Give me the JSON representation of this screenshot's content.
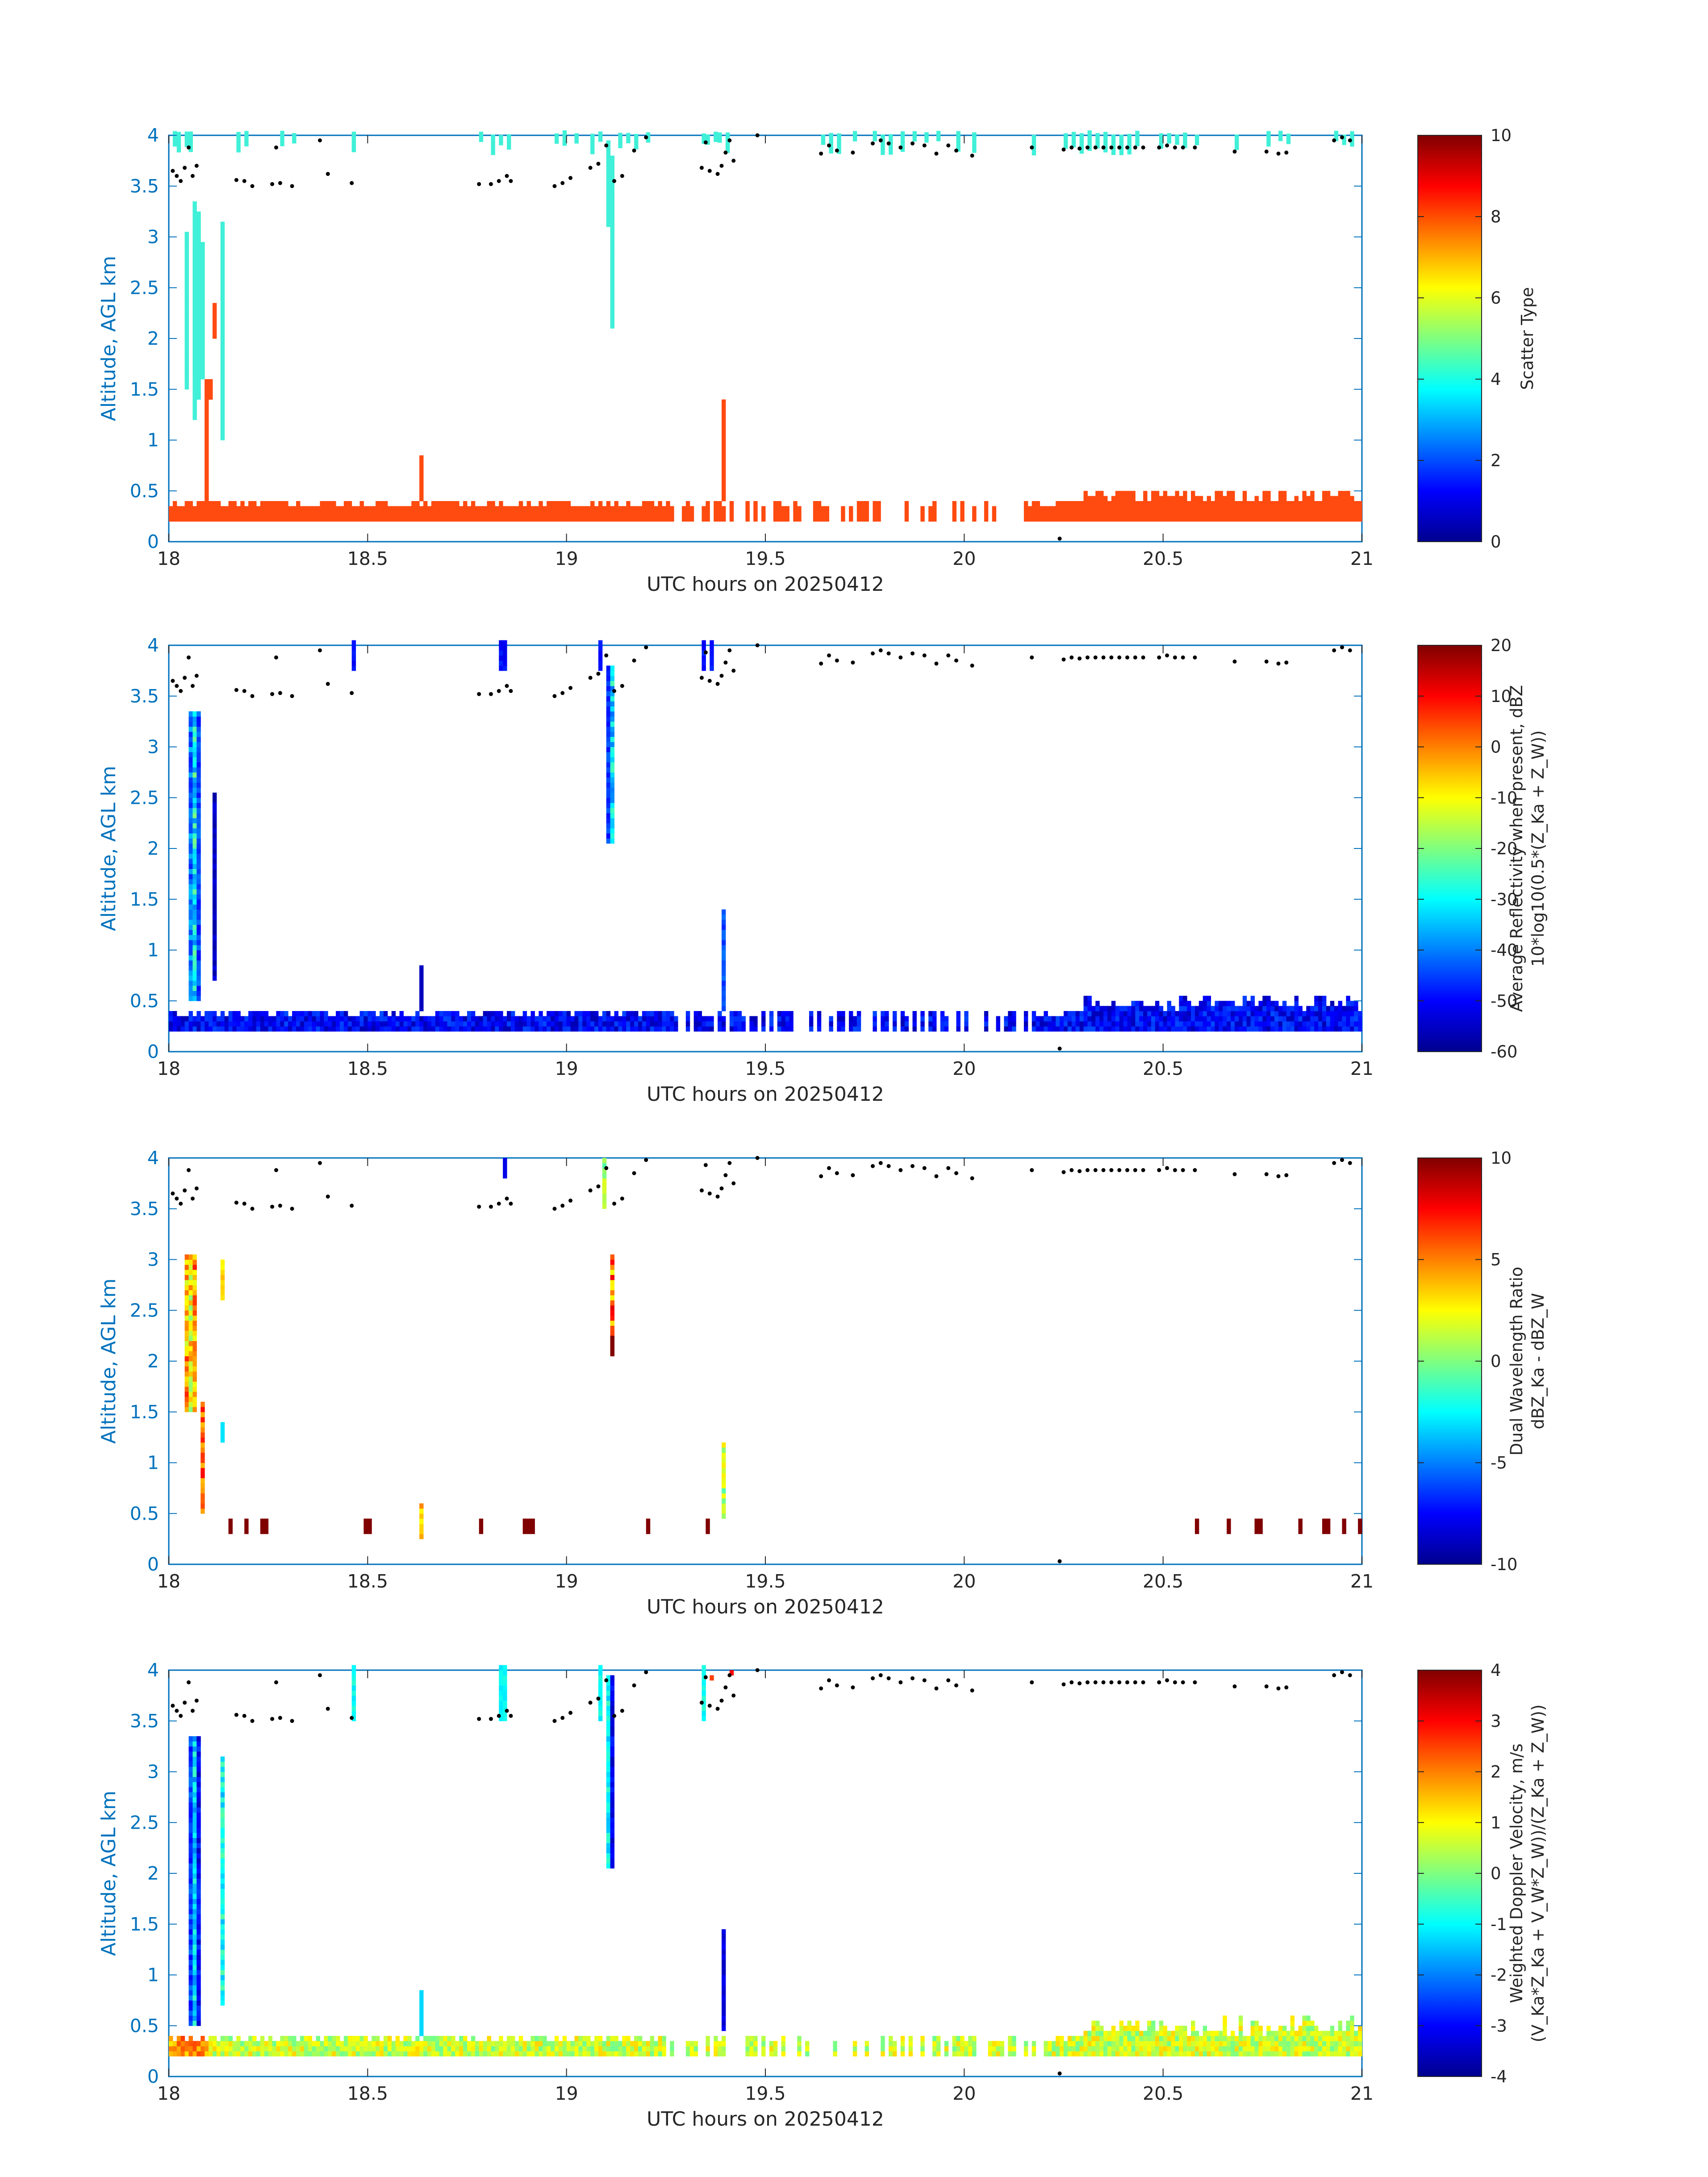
{
  "figure": {
    "date_label": "UTC hours on 20250412"
  },
  "chart_data": [
    {
      "type": "heatmap",
      "panel": "scatter-type",
      "xlabel": "UTC hours on 20250412",
      "ylabel": "Altitude, AGL km",
      "xlim": [
        18,
        21
      ],
      "ylim": [
        0,
        4
      ],
      "xticks": [
        "18",
        "18.5",
        "19",
        "19.5",
        "20",
        "20.5",
        "21"
      ],
      "yticks": [
        "0",
        "0.5",
        "1",
        "1.5",
        "2",
        "2.5",
        "3",
        "3.5",
        "4"
      ],
      "colorbar": {
        "label_lines": [
          "Scatter Type"
        ],
        "clim": [
          0,
          10
        ],
        "ticks": [
          "0",
          "2",
          "4",
          "6",
          "8",
          "10"
        ]
      }
    },
    {
      "type": "heatmap",
      "panel": "reflectivity",
      "xlabel": "UTC hours on 20250412",
      "ylabel": "Altitude, AGL km",
      "xlim": [
        18,
        21
      ],
      "ylim": [
        0,
        4
      ],
      "xticks": [
        "18",
        "18.5",
        "19",
        "19.5",
        "20",
        "20.5",
        "21"
      ],
      "yticks": [
        "0",
        "0.5",
        "1",
        "1.5",
        "2",
        "2.5",
        "3",
        "3.5",
        "4"
      ],
      "colorbar": {
        "label_lines": [
          "Average Reflectivity when present, dBZ",
          "10*log10(0.5*(Z_Ka + Z_W))"
        ],
        "clim": [
          -60,
          20
        ],
        "ticks": [
          "-60",
          "-50",
          "-40",
          "-30",
          "-20",
          "-10",
          "0",
          "10",
          "20"
        ]
      }
    },
    {
      "type": "heatmap",
      "panel": "dual-wavelength-ratio",
      "xlabel": "UTC hours on 20250412",
      "ylabel": "Altitude, AGL km",
      "xlim": [
        18,
        21
      ],
      "ylim": [
        0,
        4
      ],
      "xticks": [
        "18",
        "18.5",
        "19",
        "19.5",
        "20",
        "20.5",
        "21"
      ],
      "yticks": [
        "0",
        "0.5",
        "1",
        "1.5",
        "2",
        "2.5",
        "3",
        "3.5",
        "4"
      ],
      "colorbar": {
        "label_lines": [
          "Dual Wavelength Ratio",
          "dBZ_Ka - dBZ_W"
        ],
        "clim": [
          -10,
          10
        ],
        "ticks": [
          "-10",
          "-5",
          "0",
          "5",
          "10"
        ]
      }
    },
    {
      "type": "heatmap",
      "panel": "doppler-velocity",
      "xlabel": "UTC hours on 20250412",
      "ylabel": "Altitude, AGL km",
      "xlim": [
        18,
        21
      ],
      "ylim": [
        0,
        4
      ],
      "xticks": [
        "18",
        "18.5",
        "19",
        "19.5",
        "20",
        "20.5",
        "21"
      ],
      "yticks": [
        "0",
        "0.5",
        "1",
        "1.5",
        "2",
        "2.5",
        "3",
        "3.5",
        "4"
      ],
      "colorbar": {
        "label_lines": [
          "Weighted Doppler Velocity, m/s",
          "(V_Ka*Z_Ka + V_W*Z_W))/(Z_Ka + Z_W))"
        ],
        "clim": [
          -4,
          4
        ],
        "ticks": [
          "-4",
          "-3",
          "-2",
          "-1",
          "0",
          "1",
          "2",
          "3",
          "4"
        ]
      }
    }
  ],
  "cloud_base_points": [
    [
      18.01,
      3.65
    ],
    [
      18.02,
      3.6
    ],
    [
      18.03,
      3.55
    ],
    [
      18.04,
      3.68
    ],
    [
      18.05,
      3.88
    ],
    [
      18.06,
      3.6
    ],
    [
      18.07,
      3.7
    ],
    [
      18.17,
      3.56
    ],
    [
      18.19,
      3.55
    ],
    [
      18.21,
      3.5
    ],
    [
      18.27,
      3.88
    ],
    [
      18.26,
      3.52
    ],
    [
      18.28,
      3.53
    ],
    [
      18.31,
      3.5
    ],
    [
      18.38,
      3.95
    ],
    [
      18.4,
      3.62
    ],
    [
      18.46,
      3.53
    ],
    [
      18.78,
      3.52
    ],
    [
      18.81,
      3.52
    ],
    [
      18.83,
      3.55
    ],
    [
      18.85,
      3.6
    ],
    [
      18.86,
      3.55
    ],
    [
      18.97,
      3.5
    ],
    [
      18.99,
      3.53
    ],
    [
      19.01,
      3.58
    ],
    [
      19.06,
      3.68
    ],
    [
      19.08,
      3.72
    ],
    [
      19.1,
      3.9
    ],
    [
      19.12,
      3.55
    ],
    [
      19.14,
      3.6
    ],
    [
      19.17,
      3.85
    ],
    [
      19.2,
      3.98
    ],
    [
      19.34,
      3.68
    ],
    [
      19.35,
      3.93
    ],
    [
      19.36,
      3.65
    ],
    [
      19.38,
      3.62
    ],
    [
      19.39,
      3.7
    ],
    [
      19.4,
      3.83
    ],
    [
      19.41,
      3.95
    ],
    [
      19.42,
      3.75
    ],
    [
      19.48,
      4.0
    ],
    [
      19.64,
      3.82
    ],
    [
      19.66,
      3.9
    ],
    [
      19.68,
      3.85
    ],
    [
      19.72,
      3.83
    ],
    [
      19.77,
      3.92
    ],
    [
      19.79,
      3.95
    ],
    [
      19.81,
      3.92
    ],
    [
      19.84,
      3.88
    ],
    [
      19.87,
      3.92
    ],
    [
      19.9,
      3.9
    ],
    [
      19.93,
      3.82
    ],
    [
      19.96,
      3.9
    ],
    [
      19.98,
      3.85
    ],
    [
      20.02,
      3.8
    ],
    [
      20.17,
      3.88
    ],
    [
      20.25,
      3.86
    ],
    [
      20.27,
      3.88
    ],
    [
      20.29,
      3.87
    ],
    [
      20.31,
      3.88
    ],
    [
      20.33,
      3.88
    ],
    [
      20.35,
      3.88
    ],
    [
      20.37,
      3.88
    ],
    [
      20.39,
      3.88
    ],
    [
      20.41,
      3.88
    ],
    [
      20.43,
      3.88
    ],
    [
      20.45,
      3.88
    ],
    [
      20.49,
      3.88
    ],
    [
      20.51,
      3.9
    ],
    [
      20.53,
      3.88
    ],
    [
      20.55,
      3.88
    ],
    [
      20.58,
      3.88
    ],
    [
      20.68,
      3.84
    ],
    [
      20.76,
      3.84
    ],
    [
      20.79,
      3.82
    ],
    [
      20.81,
      3.83
    ],
    [
      20.93,
      3.95
    ],
    [
      20.95,
      3.98
    ],
    [
      20.97,
      3.95
    ],
    [
      20.24,
      0.03
    ]
  ]
}
